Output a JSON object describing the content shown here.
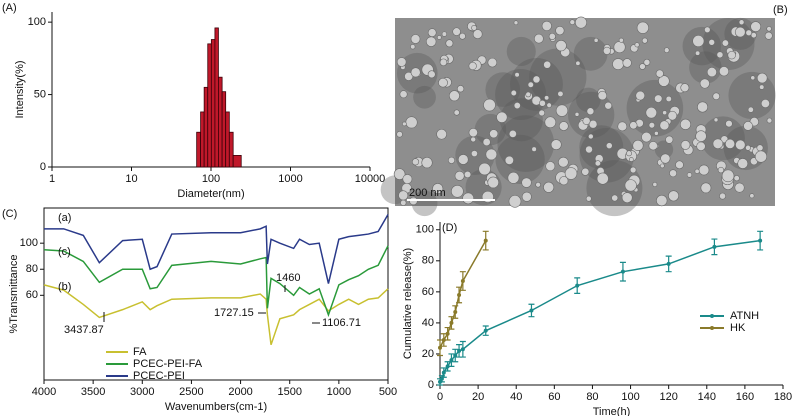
{
  "chart_data": [
    {
      "type": "histogram",
      "label": "(A)",
      "xlabel": "Diameter(nm)",
      "ylabel": "Intensity(%)",
      "xscale": "log",
      "xlim": [
        1,
        10000
      ],
      "xticks": [
        1,
        10,
        100,
        1000,
        10000
      ],
      "ylim": [
        0,
        107
      ],
      "yticks": [
        0,
        50,
        100
      ],
      "color": "#c0182a",
      "bins": [
        66,
        74,
        82,
        91,
        101,
        112,
        124,
        138,
        153,
        170,
        190,
        240
      ],
      "counts": [
        24,
        38,
        55,
        85,
        88,
        96,
        62,
        52,
        38,
        24,
        8
      ]
    },
    {
      "type": "image",
      "label": "(B)",
      "scale_bar": "200 nm"
    },
    {
      "type": "line",
      "label": "(C)",
      "xlabel": "Wavenumbers(cm-1)",
      "ylabel": "%Transmittance",
      "xlim": [
        4000,
        500
      ],
      "xticks": [
        4000,
        3500,
        3000,
        2500,
        2000,
        1500,
        1000,
        500
      ],
      "ylim": [
        -5,
        127
      ],
      "yticks": [
        60,
        80,
        100
      ],
      "x": [
        4000,
        3800,
        3600,
        3437,
        3200,
        3000,
        2920,
        2850,
        2700,
        2300,
        2000,
        1800,
        1740,
        1727,
        1690,
        1600,
        1460,
        1400,
        1300,
        1200,
        1106,
        1000,
        900,
        800,
        700,
        600,
        500
      ],
      "series": [
        {
          "name": "FA",
          "color": "#c8c030",
          "values": [
            68,
            64,
            53,
            43,
            49,
            55,
            49,
            52,
            57,
            58,
            58,
            61,
            57,
            45,
            22,
            42,
            45,
            49,
            53,
            57,
            48,
            53,
            57,
            53,
            57,
            58,
            65
          ]
        },
        {
          "name": "PCEC-PEI-FA",
          "color": "#2a9a3a",
          "values": [
            95,
            94,
            86,
            70,
            80,
            80,
            65,
            66,
            83,
            86,
            84,
            88,
            89,
            50,
            73,
            69,
            60,
            66,
            61,
            65,
            45,
            68,
            72,
            75,
            80,
            83,
            98
          ]
        },
        {
          "name": "PCEC-PEI",
          "color": "#2a3a8a",
          "values": [
            111,
            111,
            106,
            85,
            102,
            103,
            80,
            82,
            107,
            108,
            108,
            111,
            113,
            84,
            103,
            100,
            96,
            103,
            99,
            100,
            69,
            103,
            105,
            106,
            107,
            109,
            122
          ]
        }
      ],
      "annotations": [
        "(a)",
        "(c)",
        "(b)",
        "3437.87",
        "1727.15",
        "1460",
        "1106.71"
      ]
    },
    {
      "type": "errorline",
      "label": "(D)",
      "xlabel": "Time(h)",
      "ylabel": "Cumulative release(%)",
      "xlim": [
        0,
        180
      ],
      "xticks": [
        0,
        20,
        40,
        60,
        80,
        100,
        120,
        140,
        160,
        180
      ],
      "ylim": [
        0,
        105
      ],
      "yticks": [
        0,
        20,
        40,
        60,
        80,
        100
      ],
      "series": [
        {
          "name": "ATNH",
          "color": "#1a8a8a",
          "x": [
            0,
            1,
            2,
            4,
            6,
            8,
            10,
            12,
            24,
            48,
            72,
            96,
            120,
            144,
            168
          ],
          "values": [
            2,
            4,
            8,
            12,
            16,
            19,
            22,
            23,
            35,
            48,
            64,
            73,
            78,
            89,
            93
          ],
          "errors": [
            2,
            2,
            3,
            3,
            4,
            4,
            4,
            5,
            3,
            4,
            5,
            6,
            5,
            5,
            6
          ]
        },
        {
          "name": "HK",
          "color": "#8a7a2a",
          "x": [
            0,
            2,
            4,
            6,
            8,
            10,
            12,
            24
          ],
          "values": [
            24,
            29,
            33,
            40,
            47,
            58,
            67,
            93
          ],
          "errors": [
            5,
            4,
            4,
            4,
            4,
            5,
            6,
            6
          ]
        }
      ]
    }
  ]
}
